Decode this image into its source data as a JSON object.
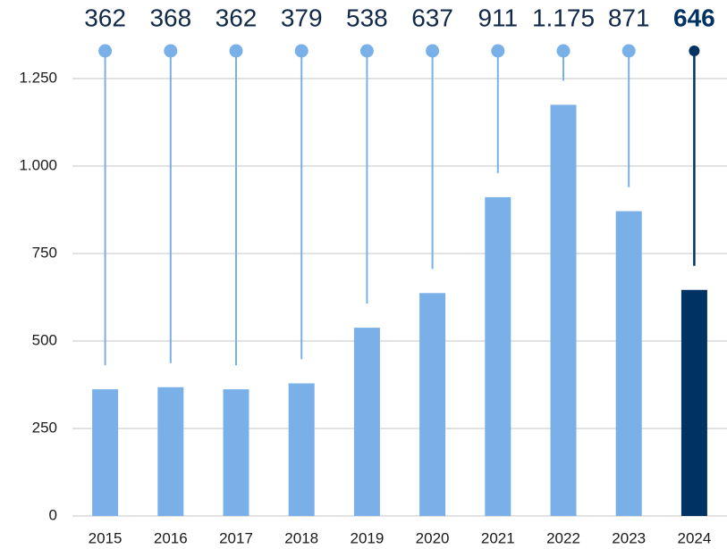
{
  "chart_data": {
    "type": "bar",
    "categories": [
      "2015",
      "2016",
      "2017",
      "2018",
      "2019",
      "2020",
      "2021",
      "2022",
      "2023",
      "2024"
    ],
    "values": [
      362,
      368,
      362,
      379,
      538,
      637,
      911,
      1175,
      871,
      646
    ],
    "value_labels": [
      "362",
      "368",
      "362",
      "379",
      "538",
      "637",
      "911",
      "1.175",
      "871",
      "646"
    ],
    "colors": [
      "#7ab0e8",
      "#7ab0e8",
      "#7ab0e8",
      "#7ab0e8",
      "#7ab0e8",
      "#7ab0e8",
      "#7ab0e8",
      "#7ab0e8",
      "#7ab0e8",
      "#003363"
    ],
    "ylim": [
      0,
      1250
    ],
    "yticks": [
      0,
      250,
      500,
      750,
      {
        "value": 1000,
        "label": "1.000"
      },
      {
        "value": 1250,
        "label": "1.250"
      }
    ],
    "grid": true
  }
}
